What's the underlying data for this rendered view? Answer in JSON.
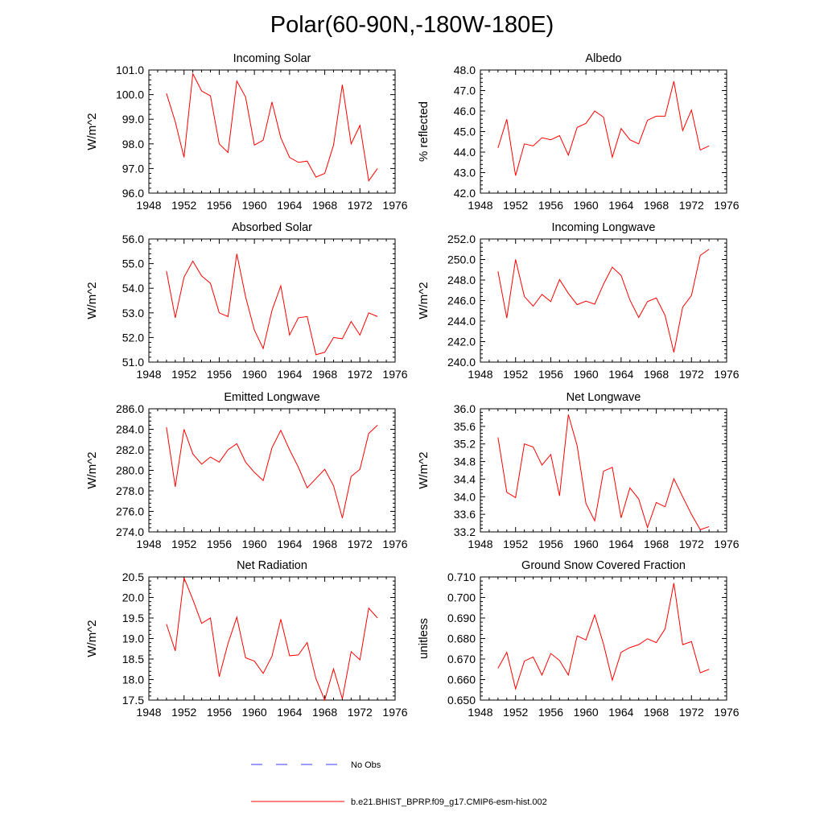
{
  "figure": {
    "title": "Polar(60-90N,-180W-180E)"
  },
  "legend": [
    {
      "label": "No Obs",
      "color": "#3a3aff",
      "style": "dashed"
    },
    {
      "label": "b.e21.BHIST_BPRP.f09_g17.CMIP6-esm-hist.002",
      "color": "#ff0000",
      "style": "solid"
    }
  ],
  "chart_data": [
    {
      "type": "line",
      "title": "Incoming Solar",
      "ylabel": "W/m^2",
      "xlim": [
        1948,
        1976
      ],
      "xticks": [
        1948,
        1952,
        1956,
        1960,
        1964,
        1968,
        1972,
        1976
      ],
      "ylim": [
        96.0,
        101.0
      ],
      "yticks": [
        "96.0",
        "97.0",
        "98.0",
        "99.0",
        "100.0",
        "101.0"
      ],
      "x": [
        1950,
        1951,
        1952,
        1953,
        1954,
        1955,
        1956,
        1957,
        1958,
        1959,
        1960,
        1961,
        1962,
        1963,
        1964,
        1965,
        1966,
        1967,
        1968,
        1969,
        1970,
        1971,
        1972,
        1973,
        1974
      ],
      "series": [
        {
          "name": "b.e21.BHIST_BPRP.f09_g17.CMIP6-esm-hist.002",
          "values": [
            100.05,
            98.9,
            97.45,
            100.85,
            100.15,
            99.95,
            98.0,
            97.65,
            100.55,
            99.9,
            97.95,
            98.15,
            99.7,
            98.25,
            97.45,
            97.25,
            97.3,
            96.65,
            96.8,
            97.95,
            100.4,
            98.0,
            98.75,
            96.5,
            97.0
          ]
        }
      ]
    },
    {
      "type": "line",
      "title": "Albedo",
      "ylabel": "% reflected",
      "xlim": [
        1948,
        1976
      ],
      "xticks": [
        1948,
        1952,
        1956,
        1960,
        1964,
        1968,
        1972,
        1976
      ],
      "ylim": [
        42.0,
        48.0
      ],
      "yticks": [
        "42.0",
        "43.0",
        "44.0",
        "45.0",
        "46.0",
        "47.0",
        "48.0"
      ],
      "x": [
        1950,
        1951,
        1952,
        1953,
        1954,
        1955,
        1956,
        1957,
        1958,
        1959,
        1960,
        1961,
        1962,
        1963,
        1964,
        1965,
        1966,
        1967,
        1968,
        1969,
        1970,
        1971,
        1972,
        1973,
        1974
      ],
      "series": [
        {
          "name": "b.e21.BHIST_BPRP.f09_g17.CMIP6-esm-hist.002",
          "values": [
            44.2,
            45.6,
            42.85,
            44.4,
            44.3,
            44.7,
            44.6,
            44.8,
            43.85,
            45.2,
            45.4,
            46.0,
            45.7,
            43.75,
            45.15,
            44.6,
            44.4,
            45.55,
            45.75,
            45.75,
            47.45,
            45.05,
            46.05,
            44.1,
            44.3
          ]
        }
      ]
    },
    {
      "type": "line",
      "title": "Absorbed Solar",
      "ylabel": "W/m^2",
      "xlim": [
        1948,
        1976
      ],
      "xticks": [
        1948,
        1952,
        1956,
        1960,
        1964,
        1968,
        1972,
        1976
      ],
      "ylim": [
        51.0,
        56.0
      ],
      "yticks": [
        "51.0",
        "52.0",
        "53.0",
        "54.0",
        "55.0",
        "56.0"
      ],
      "x": [
        1950,
        1951,
        1952,
        1953,
        1954,
        1955,
        1956,
        1957,
        1958,
        1959,
        1960,
        1961,
        1962,
        1963,
        1964,
        1965,
        1966,
        1967,
        1968,
        1969,
        1970,
        1971,
        1972,
        1973,
        1974
      ],
      "series": [
        {
          "name": "b.e21.BHIST_BPRP.f09_g17.CMIP6-esm-hist.002",
          "values": [
            54.7,
            52.8,
            54.45,
            55.1,
            54.5,
            54.2,
            53.0,
            52.85,
            55.4,
            53.65,
            52.3,
            51.55,
            53.1,
            54.1,
            52.1,
            52.8,
            52.85,
            51.3,
            51.4,
            52.0,
            51.95,
            52.65,
            52.1,
            53.0,
            52.85
          ]
        }
      ]
    },
    {
      "type": "line",
      "title": "Incoming Longwave",
      "ylabel": "W/m^2",
      "xlim": [
        1948,
        1976
      ],
      "xticks": [
        1948,
        1952,
        1956,
        1960,
        1964,
        1968,
        1972,
        1976
      ],
      "ylim": [
        240.0,
        252.0
      ],
      "yticks": [
        "240.0",
        "242.0",
        "244.0",
        "246.0",
        "248.0",
        "250.0",
        "252.0"
      ],
      "x": [
        1950,
        1951,
        1952,
        1953,
        1954,
        1955,
        1956,
        1957,
        1958,
        1959,
        1960,
        1961,
        1962,
        1963,
        1964,
        1965,
        1966,
        1967,
        1968,
        1969,
        1970,
        1971,
        1972,
        1973,
        1974
      ],
      "series": [
        {
          "name": "b.e21.BHIST_BPRP.f09_g17.CMIP6-esm-hist.002",
          "values": [
            248.85,
            244.3,
            250.0,
            246.4,
            245.45,
            246.6,
            245.9,
            248.05,
            246.7,
            245.6,
            245.95,
            245.65,
            247.6,
            249.25,
            248.45,
            246.05,
            244.35,
            245.9,
            246.25,
            244.55,
            240.95,
            245.35,
            246.5,
            250.4,
            251.0
          ]
        }
      ]
    },
    {
      "type": "line",
      "title": "Emitted Longwave",
      "ylabel": "W/m^2",
      "xlim": [
        1948,
        1976
      ],
      "xticks": [
        1948,
        1952,
        1956,
        1960,
        1964,
        1968,
        1972,
        1976
      ],
      "ylim": [
        274.0,
        286.0
      ],
      "yticks": [
        "274.0",
        "276.0",
        "278.0",
        "280.0",
        "282.0",
        "284.0",
        "286.0"
      ],
      "x": [
        1950,
        1951,
        1952,
        1953,
        1954,
        1955,
        1956,
        1957,
        1958,
        1959,
        1960,
        1961,
        1962,
        1963,
        1964,
        1965,
        1966,
        1967,
        1968,
        1969,
        1970,
        1971,
        1972,
        1973,
        1974
      ],
      "series": [
        {
          "name": "b.e21.BHIST_BPRP.f09_g17.CMIP6-esm-hist.002",
          "values": [
            284.2,
            278.4,
            284.0,
            281.6,
            280.6,
            281.3,
            280.8,
            282.0,
            282.6,
            280.8,
            279.8,
            279.0,
            282.2,
            283.9,
            282.0,
            280.3,
            278.3,
            279.2,
            280.1,
            278.5,
            275.35,
            279.4,
            280.1,
            283.6,
            284.4
          ]
        }
      ]
    },
    {
      "type": "line",
      "title": "Net Longwave",
      "ylabel": "W/m^2",
      "xlim": [
        1948,
        1976
      ],
      "xticks": [
        1948,
        1952,
        1956,
        1960,
        1964,
        1968,
        1972,
        1976
      ],
      "ylim": [
        33.2,
        36.0
      ],
      "yticks": [
        "33.2",
        "33.6",
        "34.0",
        "34.4",
        "34.8",
        "35.2",
        "35.6",
        "36.0"
      ],
      "x": [
        1950,
        1951,
        1952,
        1953,
        1954,
        1955,
        1956,
        1957,
        1958,
        1959,
        1960,
        1961,
        1962,
        1963,
        1964,
        1965,
        1966,
        1967,
        1968,
        1969,
        1970,
        1971,
        1972,
        1973,
        1974
      ],
      "series": [
        {
          "name": "b.e21.BHIST_BPRP.f09_g17.CMIP6-esm-hist.002",
          "values": [
            35.35,
            34.1,
            33.98,
            35.2,
            35.13,
            34.72,
            34.96,
            34.02,
            35.87,
            35.16,
            33.85,
            33.45,
            34.58,
            34.67,
            33.52,
            34.2,
            33.95,
            33.3,
            33.87,
            33.77,
            34.41,
            34.0,
            33.6,
            33.25,
            33.32
          ]
        }
      ]
    },
    {
      "type": "line",
      "title": "Net Radiation",
      "ylabel": "W/m^2",
      "xlim": [
        1948,
        1976
      ],
      "xticks": [
        1948,
        1952,
        1956,
        1960,
        1964,
        1968,
        1972,
        1976
      ],
      "ylim": [
        17.5,
        20.5
      ],
      "yticks": [
        "17.5",
        "18.0",
        "18.5",
        "19.0",
        "19.5",
        "20.0",
        "20.5"
      ],
      "x": [
        1950,
        1951,
        1952,
        1953,
        1954,
        1955,
        1956,
        1957,
        1958,
        1959,
        1960,
        1961,
        1962,
        1963,
        1964,
        1965,
        1966,
        1967,
        1968,
        1969,
        1970,
        1971,
        1972,
        1973,
        1974
      ],
      "series": [
        {
          "name": "b.e21.BHIST_BPRP.f09_g17.CMIP6-esm-hist.002",
          "values": [
            19.35,
            18.7,
            20.48,
            19.95,
            19.37,
            19.5,
            18.07,
            18.88,
            19.52,
            18.53,
            18.45,
            18.15,
            18.57,
            19.47,
            18.58,
            18.6,
            18.9,
            18.02,
            17.5,
            18.26,
            17.53,
            18.68,
            18.48,
            19.74,
            19.5
          ]
        }
      ]
    },
    {
      "type": "line",
      "title": "Ground Snow Covered Fraction",
      "ylabel": "unitless",
      "xlim": [
        1948,
        1976
      ],
      "xticks": [
        1948,
        1952,
        1956,
        1960,
        1964,
        1968,
        1972,
        1976
      ],
      "ylim": [
        0.65,
        0.71
      ],
      "yticks": [
        "0.650",
        "0.660",
        "0.670",
        "0.680",
        "0.690",
        "0.700",
        "0.710"
      ],
      "x": [
        1950,
        1951,
        1952,
        1953,
        1954,
        1955,
        1956,
        1957,
        1958,
        1959,
        1960,
        1961,
        1962,
        1963,
        1964,
        1965,
        1966,
        1967,
        1968,
        1969,
        1970,
        1971,
        1972,
        1973,
        1974
      ],
      "series": [
        {
          "name": "b.e21.BHIST_BPRP.f09_g17.CMIP6-esm-hist.002",
          "values": [
            0.6655,
            0.6733,
            0.6555,
            0.669,
            0.671,
            0.6622,
            0.6727,
            0.6693,
            0.6622,
            0.6813,
            0.6793,
            0.6915,
            0.6773,
            0.6597,
            0.6733,
            0.6756,
            0.677,
            0.6799,
            0.678,
            0.6847,
            0.707,
            0.677,
            0.6785,
            0.6633,
            0.665
          ]
        }
      ]
    }
  ]
}
